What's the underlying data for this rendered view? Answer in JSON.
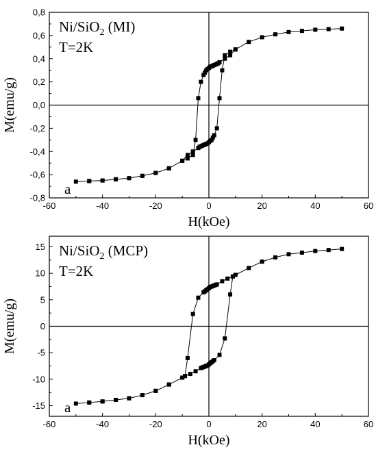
{
  "chart_data": [
    {
      "type": "scatter",
      "panel_label": "a",
      "title_parts": {
        "main": "Ni/SiO",
        "sub": "2",
        "rest": " (MI)"
      },
      "annotation": "T=2K",
      "xlabel": "H(kOe)",
      "ylabel": "M(emu/g)",
      "xlim": [
        -60,
        60
      ],
      "ylim": [
        -0.8,
        0.8
      ],
      "xticks": [
        -60,
        -40,
        -20,
        0,
        20,
        40,
        60
      ],
      "yticks": [
        -0.8,
        -0.6,
        -0.4,
        -0.2,
        0.0,
        0.2,
        0.4,
        0.6,
        0.8
      ],
      "ytick_labels": [
        "-0,8",
        "-0,6",
        "-0,4",
        "-0,2",
        "0,0",
        "0,2",
        "0,4",
        "0,6",
        "0,8"
      ],
      "zero_lines": true,
      "grid": false,
      "series": [
        {
          "values_xy": [
            [
              50,
              0.66
            ],
            [
              45,
              0.655
            ],
            [
              40,
              0.65
            ],
            [
              35,
              0.64
            ],
            [
              30,
              0.63
            ],
            [
              25,
              0.61
            ],
            [
              20,
              0.585
            ],
            [
              15,
              0.545
            ],
            [
              10,
              0.48
            ],
            [
              8,
              0.46
            ],
            [
              6,
              0.43
            ],
            [
              5,
              0.3
            ],
            [
              4,
              0.06
            ],
            [
              3,
              -0.2
            ],
            [
              2,
              -0.26
            ],
            [
              1.5,
              -0.28
            ],
            [
              1,
              -0.3
            ],
            [
              0.5,
              -0.31
            ],
            [
              0,
              -0.32
            ],
            [
              -0.5,
              -0.33
            ],
            [
              -1,
              -0.335
            ],
            [
              -1.5,
              -0.34
            ],
            [
              -2,
              -0.345
            ],
            [
              -2.5,
              -0.35
            ],
            [
              -3,
              -0.355
            ],
            [
              -3.5,
              -0.36
            ],
            [
              -4,
              -0.37
            ],
            [
              -6,
              -0.4
            ],
            [
              -8,
              -0.43
            ],
            [
              -10,
              -0.48
            ],
            [
              -15,
              -0.545
            ],
            [
              -20,
              -0.585
            ],
            [
              -25,
              -0.61
            ],
            [
              -30,
              -0.63
            ],
            [
              -35,
              -0.64
            ],
            [
              -40,
              -0.65
            ],
            [
              -45,
              -0.655
            ],
            [
              -50,
              -0.66
            ],
            [
              -45,
              -0.655
            ],
            [
              -40,
              -0.65
            ],
            [
              -35,
              -0.64
            ],
            [
              -30,
              -0.63
            ],
            [
              -25,
              -0.61
            ],
            [
              -20,
              -0.585
            ],
            [
              -15,
              -0.545
            ],
            [
              -10,
              -0.48
            ],
            [
              -8,
              -0.46
            ],
            [
              -6,
              -0.43
            ],
            [
              -5,
              -0.3
            ],
            [
              -4,
              0.06
            ],
            [
              -3,
              0.2
            ],
            [
              -2,
              0.26
            ],
            [
              -1.5,
              0.28
            ],
            [
              -1,
              0.3
            ],
            [
              -0.5,
              0.31
            ],
            [
              0,
              0.32
            ],
            [
              0.5,
              0.33
            ],
            [
              1,
              0.335
            ],
            [
              1.5,
              0.34
            ],
            [
              2,
              0.345
            ],
            [
              2.5,
              0.35
            ],
            [
              3,
              0.355
            ],
            [
              3.5,
              0.36
            ],
            [
              4,
              0.37
            ],
            [
              6,
              0.4
            ],
            [
              8,
              0.43
            ],
            [
              10,
              0.48
            ]
          ]
        }
      ]
    },
    {
      "type": "scatter",
      "panel_label": "a",
      "title_parts": {
        "main": "Ni/SiO",
        "sub": "2",
        "rest": " (MCP)"
      },
      "annotation": "T=2K",
      "xlabel": "H(kOe)",
      "ylabel": "M(emu/g)",
      "xlim": [
        -60,
        60
      ],
      "ylim": [
        -17,
        17
      ],
      "xticks": [
        -60,
        -40,
        -20,
        0,
        20,
        40,
        60
      ],
      "yticks": [
        -15,
        -10,
        -5,
        0,
        5,
        10,
        15
      ],
      "ytick_labels": [
        "-15",
        "-10",
        "-5",
        "0",
        "5",
        "10",
        "15"
      ],
      "zero_lines": true,
      "grid": false,
      "series": [
        {
          "values_xy": [
            [
              50,
              14.6
            ],
            [
              45,
              14.4
            ],
            [
              40,
              14.2
            ],
            [
              35,
              13.9
            ],
            [
              30,
              13.6
            ],
            [
              25,
              13.0
            ],
            [
              20,
              12.2
            ],
            [
              15,
              11.0
            ],
            [
              10,
              9.7
            ],
            [
              9,
              9.4
            ],
            [
              8,
              6.0
            ],
            [
              6,
              -2.3
            ],
            [
              4,
              -5.4
            ],
            [
              2,
              -6.4
            ],
            [
              1.5,
              -6.6
            ],
            [
              1,
              -6.8
            ],
            [
              0.5,
              -7.0
            ],
            [
              0,
              -7.2
            ],
            [
              -0.5,
              -7.4
            ],
            [
              -1,
              -7.5
            ],
            [
              -1.5,
              -7.6
            ],
            [
              -2,
              -7.7
            ],
            [
              -2.5,
              -7.8
            ],
            [
              -3,
              -7.9
            ],
            [
              -5,
              -8.5
            ],
            [
              -7,
              -9.0
            ],
            [
              -9,
              -9.4
            ],
            [
              -10,
              -9.7
            ],
            [
              -15,
              -11.0
            ],
            [
              -20,
              -12.2
            ],
            [
              -25,
              -13.0
            ],
            [
              -30,
              -13.6
            ],
            [
              -35,
              -13.9
            ],
            [
              -40,
              -14.2
            ],
            [
              -45,
              -14.4
            ],
            [
              -50,
              -14.6
            ],
            [
              -45,
              -14.4
            ],
            [
              -40,
              -14.2
            ],
            [
              -35,
              -13.9
            ],
            [
              -30,
              -13.6
            ],
            [
              -25,
              -13.0
            ],
            [
              -20,
              -12.2
            ],
            [
              -15,
              -11.0
            ],
            [
              -10,
              -9.7
            ],
            [
              -9,
              -9.4
            ],
            [
              -8,
              -6.0
            ],
            [
              -6,
              2.3
            ],
            [
              -4,
              5.4
            ],
            [
              -2,
              6.4
            ],
            [
              -1.5,
              6.6
            ],
            [
              -1,
              6.8
            ],
            [
              -0.5,
              7.0
            ],
            [
              0,
              7.2
            ],
            [
              0.5,
              7.4
            ],
            [
              1,
              7.5
            ],
            [
              1.5,
              7.6
            ],
            [
              2,
              7.7
            ],
            [
              2.5,
              7.8
            ],
            [
              3,
              7.9
            ],
            [
              5,
              8.5
            ],
            [
              7,
              9.0
            ],
            [
              9,
              9.4
            ],
            [
              10,
              9.7
            ]
          ]
        }
      ]
    }
  ]
}
